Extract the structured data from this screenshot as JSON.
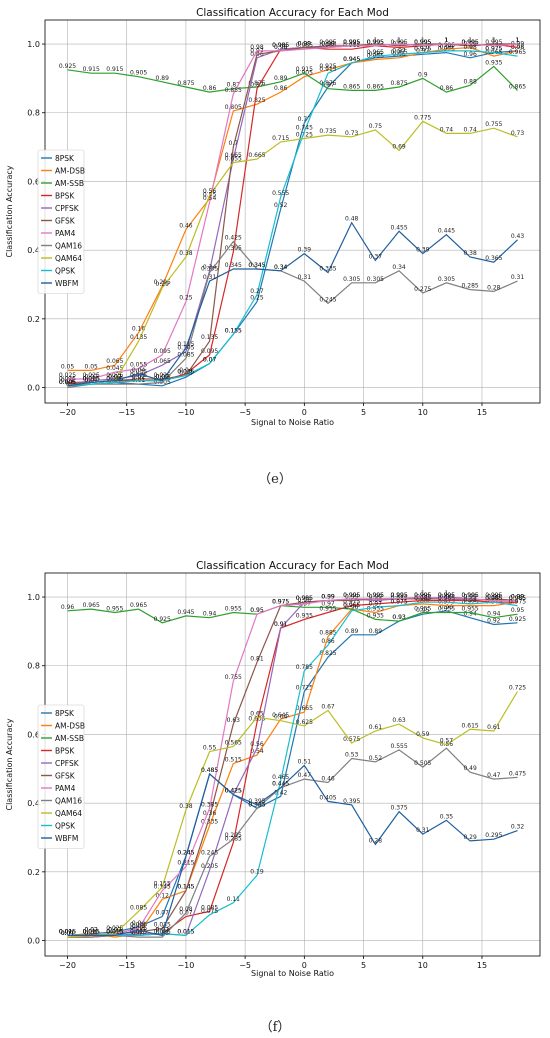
{
  "captions": [
    "（e）",
    "（f）"
  ],
  "chart_data": [
    {
      "type": "line",
      "title": "Classification Accuracy for Each Mod",
      "xlabel": "Signal to Noise Ratio",
      "ylabel": "Classification Accuracy",
      "x": [
        -20,
        -18,
        -16,
        -14,
        -12,
        -10,
        -8,
        -6,
        -4,
        -2,
        0,
        2,
        4,
        6,
        8,
        10,
        12,
        14,
        16,
        18
      ],
      "xlim": [
        -21.9,
        19.9
      ],
      "ylim": [
        -0.045,
        1.07
      ],
      "xticks": [
        -20,
        -15,
        -10,
        -5,
        0,
        5,
        10,
        15
      ],
      "yticks": [
        0.0,
        0.2,
        0.4,
        0.6,
        0.8,
        1.0
      ],
      "grid": true,
      "legend_position": "left",
      "series": [
        {
          "name": "8PSK",
          "color": "#1f77b4",
          "values": [
            0.005,
            0.01,
            0.015,
            0.01,
            0.005,
            0.03,
            0.07,
            0.155,
            0.25,
            0.52,
            0.77,
            0.875,
            0.945,
            0.96,
            0.965,
            0.97,
            0.975,
            0.96,
            0.975,
            0.98
          ]
        },
        {
          "name": "AM-DSB",
          "color": "#ff7f0e",
          "values": [
            0.05,
            0.05,
            0.065,
            0.16,
            0.295,
            0.46,
            0.55,
            0.805,
            0.825,
            0.86,
            0.905,
            0.925,
            0.945,
            0.955,
            0.96,
            0.975,
            0.985,
            0.99,
            0.965,
            0.98
          ]
        },
        {
          "name": "AM-SSB",
          "color": "#2ca02c",
          "values": [
            0.925,
            0.915,
            0.915,
            0.905,
            0.89,
            0.875,
            0.86,
            0.87,
            0.875,
            0.89,
            0.915,
            0.87,
            0.865,
            0.865,
            0.875,
            0.9,
            0.86,
            0.88,
            0.935,
            0.865
          ]
        },
        {
          "name": "BPSK",
          "color": "#d62728",
          "values": [
            0.015,
            0.015,
            0.02,
            0.02,
            0.02,
            0.04,
            0.095,
            0.395,
            0.87,
            0.985,
            0.99,
            0.985,
            0.985,
            0.995,
            0.99,
            0.995,
            1.0,
            0.995,
            1.0,
            0.99
          ]
        },
        {
          "name": "CPFSK",
          "color": "#9467bd",
          "values": [
            0.01,
            0.02,
            0.025,
            0.035,
            0.065,
            0.105,
            0.34,
            0.665,
            0.96,
            0.985,
            0.99,
            0.99,
            0.995,
            0.995,
            1.0,
            0.995,
            1.0,
            0.995,
            1.0,
            1.0
          ]
        },
        {
          "name": "GFSK",
          "color": "#8c564b",
          "values": [
            0.01,
            0.015,
            0.02,
            0.025,
            0.025,
            0.035,
            0.135,
            0.7,
            0.97,
            0.98,
            0.99,
            0.995,
            0.995,
            1.0,
            0.995,
            1.0,
            1.0,
            0.995,
            1.0,
            1.0
          ]
        },
        {
          "name": "PAM4",
          "color": "#e377c2",
          "values": [
            0.025,
            0.025,
            0.045,
            0.055,
            0.095,
            0.25,
            0.54,
            0.855,
            0.98,
            0.98,
            0.985,
            0.99,
            0.995,
            0.995,
            1.0,
            0.995,
            1.0,
            1.0,
            0.995,
            1.0
          ]
        },
        {
          "name": "QAM16",
          "color": "#7f7f7f",
          "values": [
            0.0,
            0.01,
            0.01,
            0.01,
            0.015,
            0.085,
            0.335,
            0.425,
            0.345,
            0.34,
            0.31,
            0.245,
            0.305,
            0.305,
            0.34,
            0.275,
            0.305,
            0.285,
            0.28,
            0.31
          ]
        },
        {
          "name": "QAM64",
          "color": "#bcbd22",
          "values": [
            0.005,
            0.015,
            0.02,
            0.135,
            0.29,
            0.38,
            0.56,
            0.655,
            0.665,
            0.715,
            0.725,
            0.735,
            0.73,
            0.75,
            0.69,
            0.775,
            0.74,
            0.74,
            0.755,
            0.73
          ]
        },
        {
          "name": "QPSK",
          "color": "#17becf",
          "values": [
            0.005,
            0.01,
            0.015,
            0.02,
            0.02,
            0.035,
            0.07,
            0.155,
            0.27,
            0.555,
            0.745,
            0.915,
            0.945,
            0.965,
            0.97,
            0.975,
            0.98,
            0.98,
            0.975,
            0.965
          ]
        },
        {
          "name": "WBFM",
          "color": "#1f5f9e",
          "values": [
            0.005,
            0.015,
            0.02,
            0.04,
            0.02,
            0.115,
            0.31,
            0.345,
            0.345,
            0.34,
            0.39,
            0.335,
            0.48,
            0.37,
            0.455,
            0.39,
            0.445,
            0.38,
            0.365,
            0.43
          ]
        }
      ]
    },
    {
      "type": "line",
      "title": "Classification Accuracy for Each Mod",
      "xlabel": "Signal to Noise Ratio",
      "ylabel": "Classification Accuracy",
      "x": [
        -20,
        -18,
        -16,
        -14,
        -12,
        -10,
        -8,
        -6,
        -4,
        -2,
        0,
        2,
        4,
        6,
        8,
        10,
        12,
        14,
        16,
        18
      ],
      "xlim": [
        -21.9,
        19.9
      ],
      "ylim": [
        -0.045,
        1.07
      ],
      "xticks": [
        -20,
        -15,
        -10,
        -5,
        0,
        5,
        10,
        15
      ],
      "yticks": [
        0.0,
        0.2,
        0.4,
        0.6,
        0.8,
        1.0
      ],
      "grid": true,
      "legend_position": "left",
      "series": [
        {
          "name": "8PSK",
          "color": "#1f77b4",
          "values": [
            0.015,
            0.02,
            0.025,
            0.04,
            0.07,
            0.245,
            0.485,
            0.425,
            0.385,
            0.42,
            0.725,
            0.825,
            0.89,
            0.89,
            0.93,
            0.95,
            0.96,
            0.94,
            0.92,
            0.925
          ]
        },
        {
          "name": "AM-DSB",
          "color": "#ff7f0e",
          "values": [
            0.015,
            0.02,
            0.01,
            0.02,
            0.12,
            0.145,
            0.335,
            0.515,
            0.54,
            0.645,
            0.665,
            0.885,
            0.965,
            0.955,
            0.975,
            0.98,
            0.975,
            0.975,
            0.975,
            0.985
          ]
        },
        {
          "name": "AM-SSB",
          "color": "#2ca02c",
          "values": [
            0.96,
            0.965,
            0.955,
            0.965,
            0.925,
            0.945,
            0.94,
            0.955,
            0.95,
            0.975,
            0.97,
            0.97,
            0.965,
            0.935,
            0.93,
            0.955,
            0.955,
            0.955,
            0.94,
            0.95
          ]
        },
        {
          "name": "BPSK",
          "color": "#d62728",
          "values": [
            0.01,
            0.01,
            0.015,
            0.015,
            0.02,
            0.07,
            0.085,
            0.285,
            0.635,
            0.91,
            0.935,
            0.955,
            0.975,
            0.98,
            0.985,
            0.99,
            0.99,
            0.99,
            0.985,
            0.985
          ]
        },
        {
          "name": "CPFSK",
          "color": "#9467bd",
          "values": [
            0.015,
            0.015,
            0.015,
            0.02,
            0.02,
            0.015,
            0.205,
            0.425,
            0.56,
            0.91,
            0.985,
            0.99,
            0.995,
            0.99,
            0.995,
            0.995,
            1.0,
            0.995,
            0.99,
            0.99
          ]
        },
        {
          "name": "GFSK",
          "color": "#8c564b",
          "values": [
            0.01,
            0.015,
            0.02,
            0.025,
            0.035,
            0.145,
            0.36,
            0.63,
            0.81,
            0.975,
            0.985,
            0.99,
            0.99,
            0.995,
            0.995,
            0.995,
            0.995,
            0.99,
            0.995,
            0.99
          ]
        },
        {
          "name": "PAM4",
          "color": "#e377c2",
          "values": [
            0.01,
            0.01,
            0.02,
            0.035,
            0.145,
            0.215,
            0.385,
            0.755,
            0.95,
            0.975,
            0.98,
            0.99,
            0.995,
            0.995,
            0.995,
            1.0,
            0.995,
            0.995,
            0.99,
            0.99
          ]
        },
        {
          "name": "QAM16",
          "color": "#7f7f7f",
          "values": [
            0.01,
            0.01,
            0.015,
            0.01,
            0.01,
            0.08,
            0.245,
            0.295,
            0.385,
            0.445,
            0.47,
            0.46,
            0.53,
            0.52,
            0.555,
            0.505,
            0.56,
            0.49,
            0.47,
            0.475
          ]
        },
        {
          "name": "QAM64",
          "color": "#bcbd22",
          "values": [
            0.01,
            0.015,
            0.02,
            0.085,
            0.155,
            0.38,
            0.55,
            0.565,
            0.65,
            0.64,
            0.625,
            0.67,
            0.575,
            0.61,
            0.63,
            0.59,
            0.57,
            0.615,
            0.61,
            0.725
          ]
        },
        {
          "name": "QPSK",
          "color": "#17becf",
          "values": [
            0.015,
            0.015,
            0.015,
            0.015,
            0.02,
            0.015,
            0.075,
            0.11,
            0.19,
            0.465,
            0.785,
            0.86,
            0.96,
            0.97,
            0.975,
            0.985,
            0.985,
            0.98,
            0.985,
            0.975
          ]
        },
        {
          "name": "WBFM",
          "color": "#1f5f9e",
          "values": [
            0.015,
            0.015,
            0.015,
            0.03,
            0.015,
            0.245,
            0.485,
            0.425,
            0.395,
            0.445,
            0.51,
            0.405,
            0.395,
            0.28,
            0.375,
            0.31,
            0.35,
            0.29,
            0.295,
            0.32
          ]
        }
      ]
    }
  ]
}
